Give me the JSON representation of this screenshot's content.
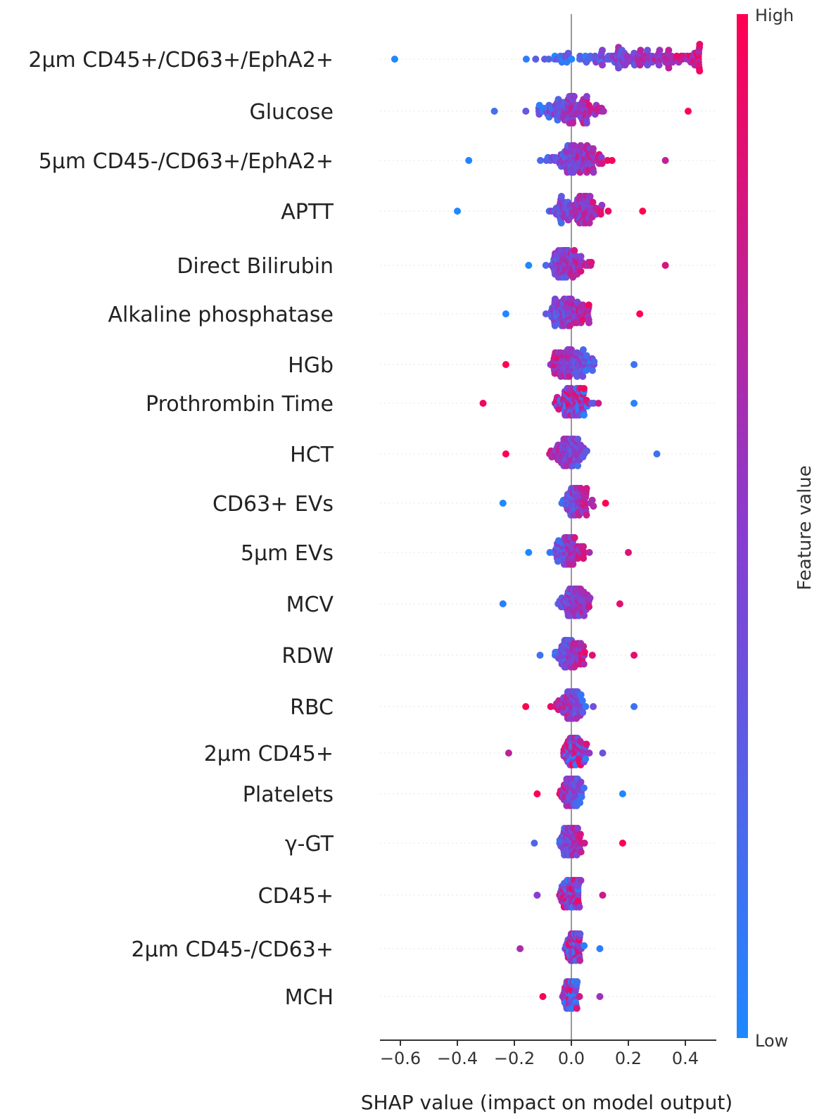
{
  "chart_data": {
    "type": "scatter",
    "subtype": "shap-beeswarm",
    "title": "",
    "xlabel": "SHAP value (impact on model output)",
    "ylabel": "",
    "xlim": [
      -0.66,
      0.51
    ],
    "xticks": [
      "−0.6",
      "−0.4",
      "−0.2",
      "0.0",
      "0.2",
      "0.4"
    ],
    "xtick_values": [
      -0.6,
      -0.4,
      -0.2,
      0.0,
      0.2,
      0.4
    ],
    "colorbar": {
      "title": "Feature value",
      "high_label": "High",
      "low_label": "Low",
      "low_color": "#1e88ff",
      "high_color": "#ff0052"
    },
    "features": [
      {
        "name": "2μm CD45+/CD63+/EphA2+",
        "min": -0.62,
        "max": 0.45,
        "skew": 0.22,
        "n": 150,
        "trend": 1,
        "spread": 0.32
      },
      {
        "name": "Glucose",
        "min": -0.27,
        "max": 0.41,
        "skew": 0.0,
        "n": 120,
        "trend": 1,
        "spread": 0.1
      },
      {
        "name": "5μm CD45-/CD63+/EphA2+",
        "min": -0.36,
        "max": 0.33,
        "skew": 0.02,
        "n": 120,
        "trend": 1,
        "spread": 0.1
      },
      {
        "name": "APTT",
        "min": -0.4,
        "max": 0.25,
        "skew": 0.02,
        "n": 110,
        "trend": 1,
        "spread": 0.09
      },
      {
        "name": "Direct Bilirubin",
        "min": -0.15,
        "max": 0.33,
        "skew": -0.02,
        "n": 110,
        "trend": 1,
        "spread": 0.07
      },
      {
        "name": "Alkaline phosphatase",
        "min": -0.23,
        "max": 0.24,
        "skew": -0.01,
        "n": 110,
        "trend": 1,
        "spread": 0.07
      },
      {
        "name": "HGb",
        "min": -0.23,
        "max": 0.22,
        "skew": 0.0,
        "n": 110,
        "trend": -1,
        "spread": 0.07
      },
      {
        "name": "Prothrombin Time",
        "min": -0.31,
        "max": 0.22,
        "skew": 0.01,
        "n": 100,
        "trend": 0,
        "spread": 0.06
      },
      {
        "name": "HCT",
        "min": -0.23,
        "max": 0.3,
        "skew": -0.01,
        "n": 100,
        "trend": -1,
        "spread": 0.06
      },
      {
        "name": "CD63+ EVs",
        "min": -0.24,
        "max": 0.12,
        "skew": 0.02,
        "n": 90,
        "trend": 1,
        "spread": 0.05
      },
      {
        "name": "5μm EVs",
        "min": -0.15,
        "max": 0.2,
        "skew": -0.01,
        "n": 90,
        "trend": 1,
        "spread": 0.05
      },
      {
        "name": "MCV",
        "min": -0.24,
        "max": 0.17,
        "skew": 0.01,
        "n": 100,
        "trend": 1,
        "spread": 0.05
      },
      {
        "name": "RDW",
        "min": -0.11,
        "max": 0.22,
        "skew": 0.0,
        "n": 100,
        "trend": 1,
        "spread": 0.05
      },
      {
        "name": "RBC",
        "min": -0.16,
        "max": 0.22,
        "skew": 0.0,
        "n": 100,
        "trend": -1,
        "spread": 0.05
      },
      {
        "name": "2μm CD45+",
        "min": -0.22,
        "max": 0.11,
        "skew": 0.01,
        "n": 90,
        "trend": 0,
        "spread": 0.04
      },
      {
        "name": "Platelets",
        "min": -0.12,
        "max": 0.18,
        "skew": 0.0,
        "n": 90,
        "trend": -1,
        "spread": 0.04
      },
      {
        "name": "γ-GT",
        "min": -0.13,
        "max": 0.18,
        "skew": 0.0,
        "n": 90,
        "trend": 1,
        "spread": 0.04
      },
      {
        "name": "CD45+",
        "min": -0.12,
        "max": 0.11,
        "skew": 0.0,
        "n": 90,
        "trend": 0,
        "spread": 0.04
      },
      {
        "name": "2μm CD45-/CD63+",
        "min": -0.18,
        "max": 0.1,
        "skew": 0.01,
        "n": 80,
        "trend": 0,
        "spread": 0.03
      },
      {
        "name": "MCH",
        "min": -0.1,
        "max": 0.1,
        "skew": 0.0,
        "n": 90,
        "trend": 0,
        "spread": 0.03
      }
    ]
  }
}
